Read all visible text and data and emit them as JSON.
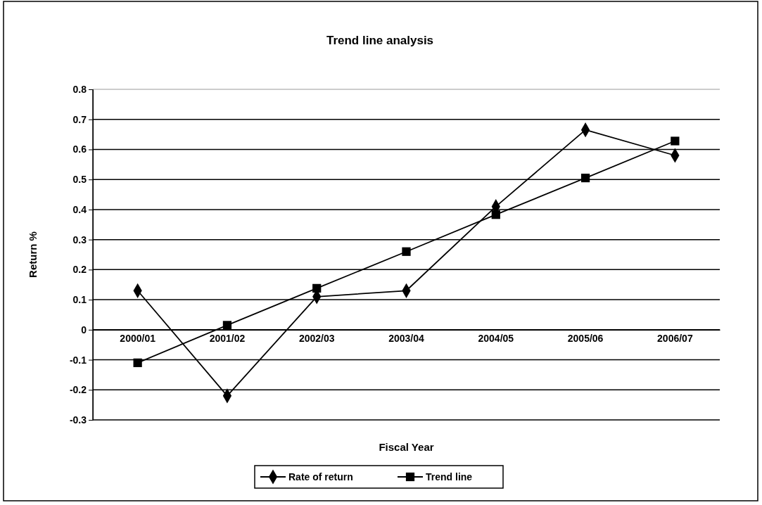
{
  "chart_data": {
    "type": "line",
    "title": "Trend line analysis",
    "xlabel": "Fiscal Year",
    "ylabel": "Return %",
    "categories": [
      "2000/01",
      "2001/02",
      "2002/03",
      "2003/04",
      "2004/05",
      "2005/06",
      "2006/07"
    ],
    "series": [
      {
        "name": "Rate of return",
        "color": "#000000",
        "marker": "diamond",
        "values": [
          0.13,
          -0.22,
          0.11,
          0.13,
          0.41,
          0.665,
          0.58
        ]
      },
      {
        "name": "Trend line",
        "color": "#000000",
        "marker": "square",
        "values": [
          -0.11,
          0.015,
          0.138,
          0.26,
          0.383,
          0.505,
          0.628
        ]
      }
    ],
    "ylim": [
      -0.3,
      0.8
    ],
    "yticks": [
      -0.3,
      -0.2,
      -0.1,
      0,
      0.1,
      0.2,
      0.3,
      0.4,
      0.5,
      0.6,
      0.7,
      0.8
    ],
    "grid": "y",
    "legend": "bottom",
    "line_style": "solid"
  }
}
